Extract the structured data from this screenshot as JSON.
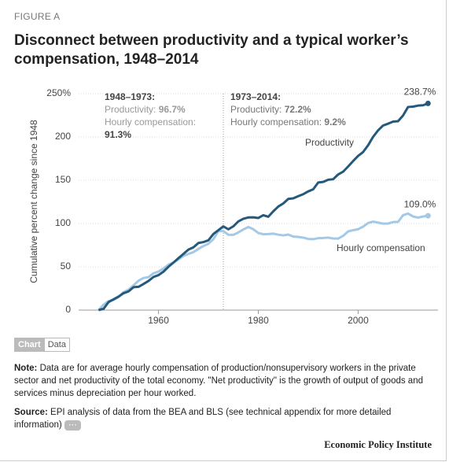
{
  "header": {
    "label": "FIGURE A"
  },
  "chart_data": {
    "type": "line",
    "title": "Disconnect between productivity and a typical worker’s compensation, 1948–2014",
    "y_label": "Cumulative percent change since 1948",
    "x": [
      1948,
      1949,
      1950,
      1951,
      1952,
      1953,
      1954,
      1955,
      1956,
      1957,
      1958,
      1959,
      1960,
      1961,
      1962,
      1963,
      1964,
      1965,
      1966,
      1967,
      1968,
      1969,
      1970,
      1971,
      1972,
      1973,
      1974,
      1975,
      1976,
      1977,
      1978,
      1979,
      1980,
      1981,
      1982,
      1983,
      1984,
      1985,
      1986,
      1987,
      1988,
      1989,
      1990,
      1991,
      1992,
      1993,
      1994,
      1995,
      1996,
      1997,
      1998,
      1999,
      2000,
      2001,
      2002,
      2003,
      2004,
      2005,
      2006,
      2007,
      2008,
      2009,
      2010,
      2011,
      2012,
      2013,
      2014
    ],
    "series": [
      {
        "name": "Productivity",
        "color": "#24597c",
        "values": [
          0,
          1.5,
          9.3,
          12.4,
          15.6,
          19.5,
          21.6,
          26.5,
          26.9,
          30.2,
          33.7,
          38.3,
          40.4,
          44.4,
          50.1,
          54.9,
          60.0,
          64.9,
          69.9,
          72.5,
          77.5,
          78.6,
          80.6,
          87.9,
          92.3,
          96.7,
          93.3,
          96.8,
          102.4,
          105.5,
          107.0,
          107.2,
          106.4,
          109.6,
          107.8,
          114.1,
          119.6,
          123.2,
          128.4,
          129.1,
          131.6,
          133.9,
          137.1,
          139.5,
          147.4,
          148.1,
          150.6,
          151.2,
          156.7,
          159.9,
          165.9,
          172.2,
          178.1,
          182.6,
          190.4,
          200.1,
          207.6,
          213.2,
          215.3,
          217.7,
          218.2,
          224.8,
          234.6,
          235.0,
          236.2,
          236.6,
          238.7
        ],
        "value_labels": [
          null,
          null,
          null,
          null,
          null,
          null,
          null,
          null,
          null,
          null,
          null,
          null,
          null,
          null,
          null,
          null,
          null,
          null,
          null,
          null,
          null,
          null,
          null,
          null,
          null,
          null,
          null,
          null,
          null,
          null,
          null,
          null,
          null,
          null,
          null,
          null,
          null,
          null,
          null,
          null,
          null,
          null,
          null,
          null,
          null,
          null,
          null,
          null,
          null,
          null,
          null,
          null,
          null,
          null,
          null,
          null,
          null,
          null,
          null,
          null,
          null,
          null,
          null,
          null,
          null,
          null,
          "238.7%"
        ]
      },
      {
        "name": "Hourly compensation",
        "color": "#a3c9e6",
        "values": [
          0,
          6.3,
          10.5,
          11.8,
          15.0,
          20.8,
          23.5,
          28.7,
          33.9,
          37.1,
          38.1,
          42.5,
          44.5,
          48.0,
          52.5,
          55.0,
          58.5,
          62.5,
          64.9,
          66.9,
          70.7,
          74.0,
          76.6,
          82.0,
          91.2,
          91.3,
          87.0,
          86.9,
          89.7,
          93.1,
          96.0,
          93.4,
          89.0,
          87.6,
          87.8,
          88.3,
          87.1,
          86.3,
          87.3,
          84.9,
          84.5,
          83.7,
          82.2,
          81.9,
          83.1,
          83.3,
          83.7,
          82.7,
          82.6,
          85.8,
          90.9,
          92.3,
          93.4,
          96.4,
          100.6,
          102.2,
          101.0,
          99.9,
          100.0,
          101.7,
          101.9,
          109.6,
          111.5,
          108.1,
          106.8,
          108.1,
          109.0
        ],
        "value_labels": [
          null,
          null,
          null,
          null,
          null,
          null,
          null,
          null,
          null,
          null,
          null,
          null,
          null,
          null,
          null,
          null,
          null,
          null,
          null,
          null,
          null,
          null,
          null,
          null,
          null,
          null,
          null,
          null,
          null,
          null,
          null,
          null,
          null,
          null,
          null,
          null,
          null,
          null,
          null,
          null,
          null,
          null,
          null,
          null,
          null,
          null,
          null,
          null,
          null,
          null,
          null,
          null,
          null,
          null,
          null,
          null,
          null,
          null,
          null,
          null,
          null,
          null,
          null,
          null,
          null,
          null,
          "109.0%"
        ]
      }
    ],
    "xlim": [
      1944,
      2016
    ],
    "xticks": [
      1960,
      1980,
      2000
    ],
    "ylim": [
      0,
      250
    ],
    "yticks": [
      0,
      50,
      100,
      150,
      200,
      {
        "value": 250,
        "label": "250%"
      }
    ],
    "grid": true,
    "vline": 1973,
    "annotations": [
      {
        "title": "1948–1973:",
        "lines": [
          {
            "label": "Productivity:",
            "value": "96.7%"
          },
          {
            "label": "Hourly compensation:",
            "value": "91.3%"
          }
        ]
      },
      {
        "title": "1973–2014:",
        "lines": [
          {
            "label": "Productivity:",
            "value": "72.2%"
          },
          {
            "label": "Hourly compensation:",
            "value": "9.2%"
          }
        ]
      }
    ]
  },
  "tabs": [
    "Chart",
    "Data"
  ],
  "note": {
    "label": "Note:",
    "text": "Data are for average hourly compensation of production/nonsupervisory workers in the private sector and net productivity of the total economy. \"Net productivity\" is the growth of output of goods and services minus depreciation per hour worked."
  },
  "source": {
    "label": "Source:",
    "text": "EPI analysis of data from the BEA and BLS (see technical appendix for more detailed information)",
    "more": "⋯"
  },
  "footer": "Economic Policy Institute"
}
